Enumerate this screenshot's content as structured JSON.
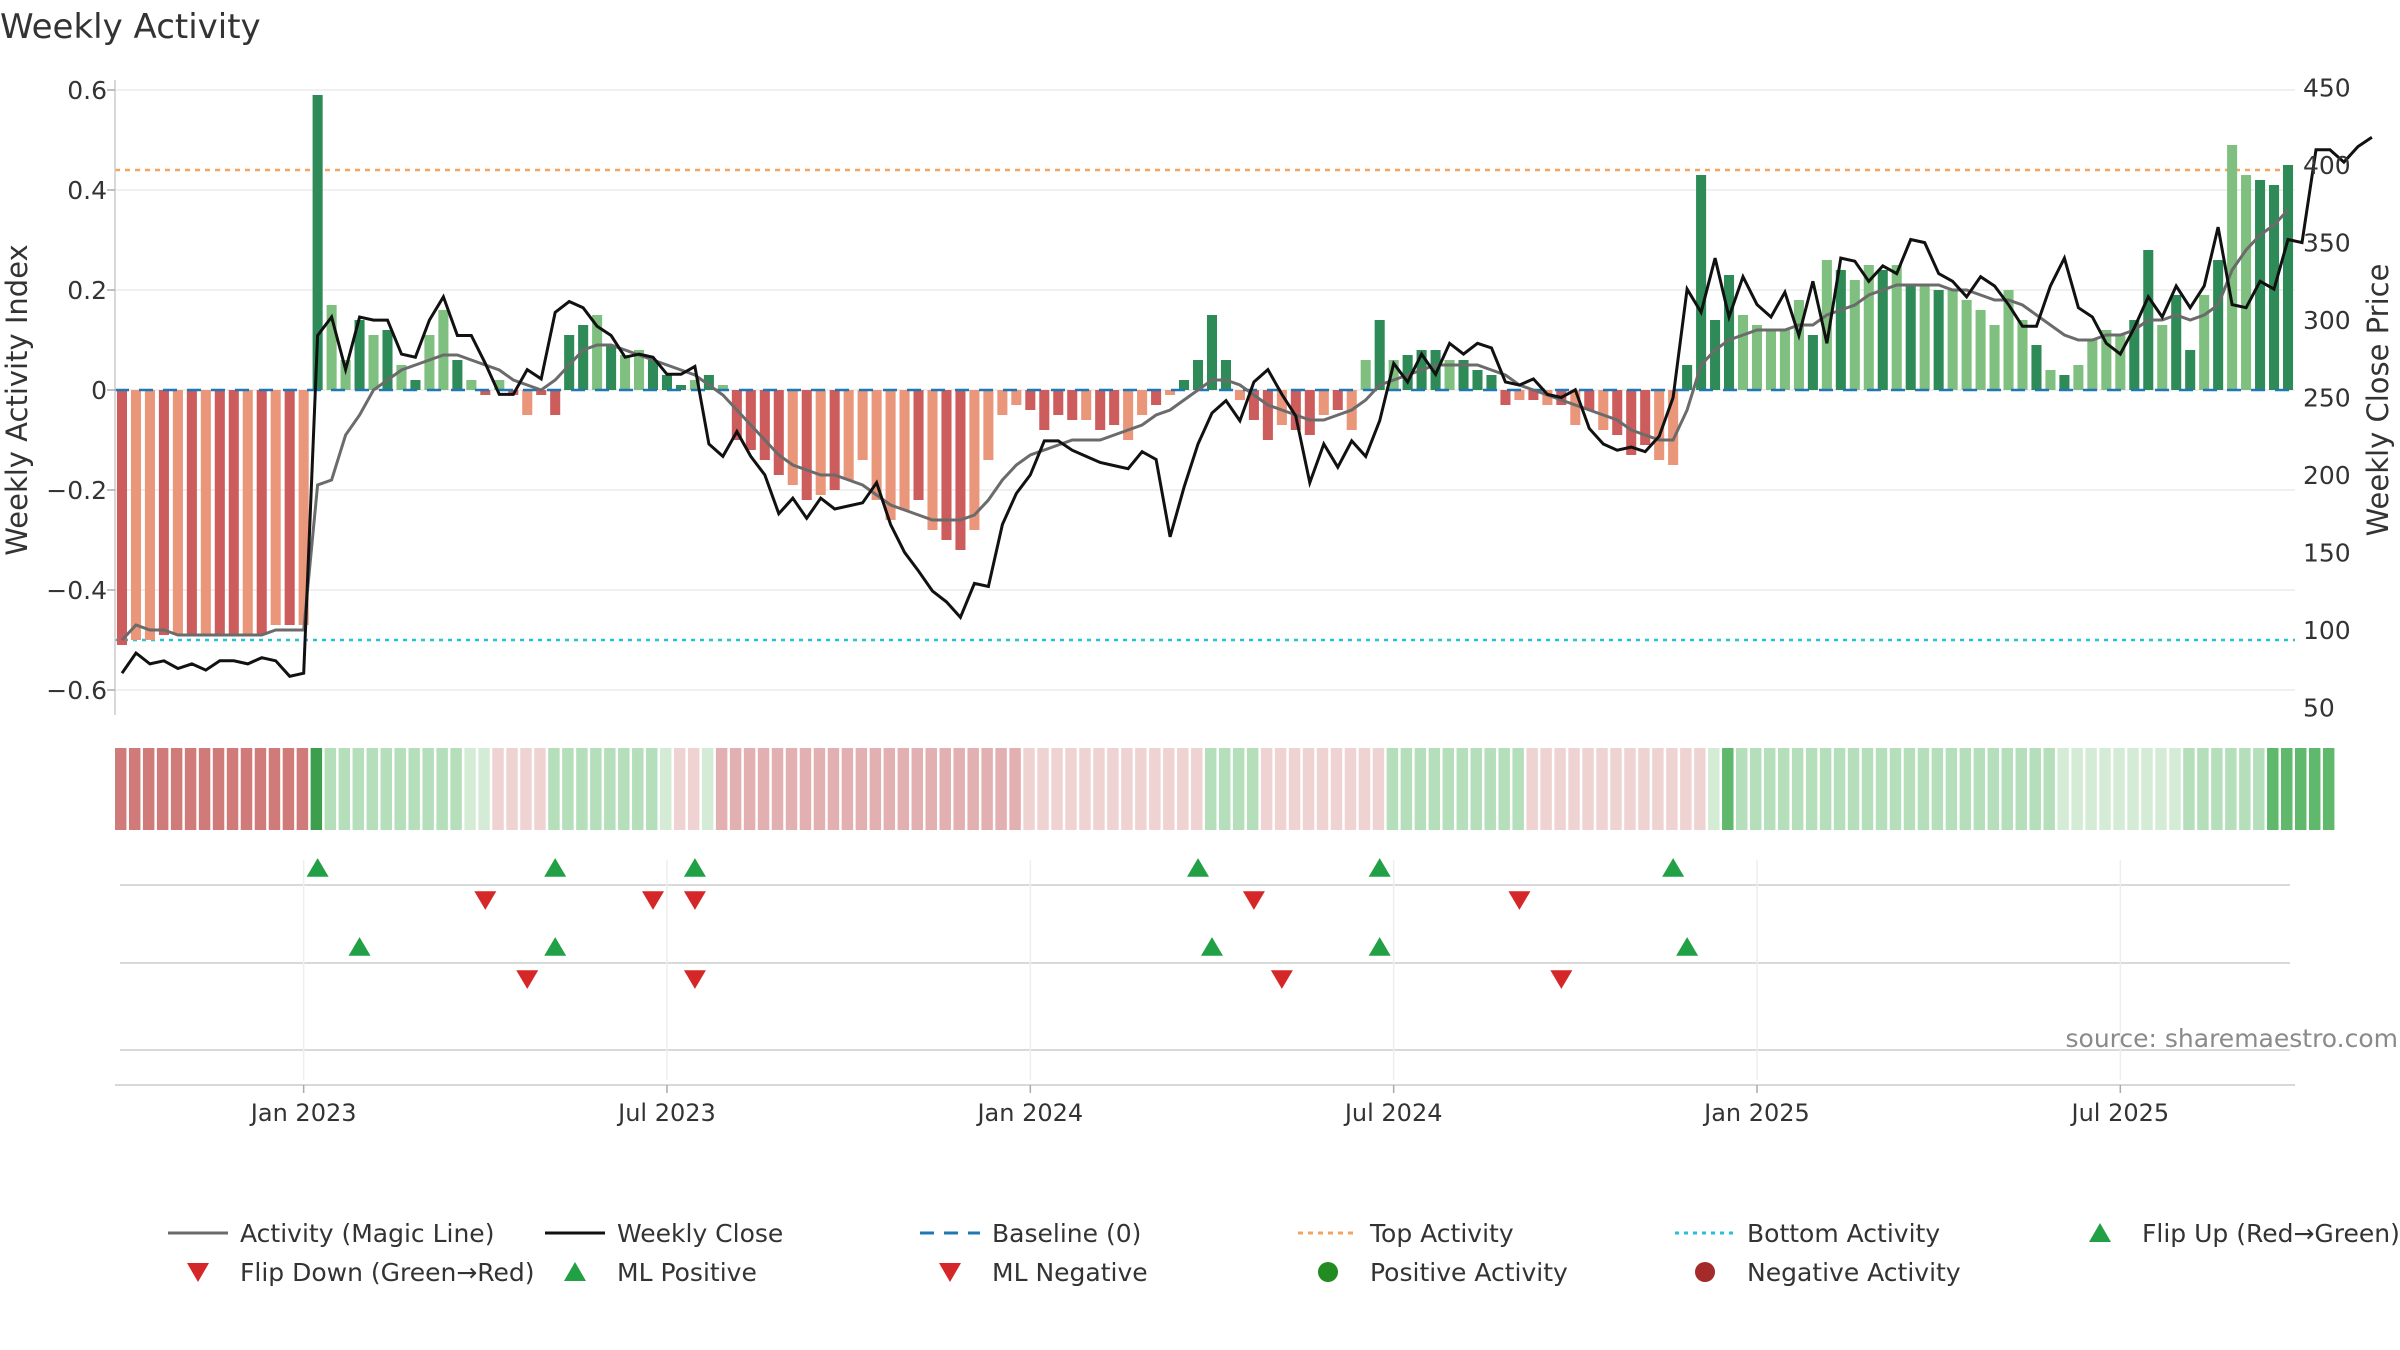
{
  "title": "Weekly Activity",
  "source": "source: sharemaestro.com",
  "colors": {
    "strong_green": "#2e8b57",
    "light_green": "#7fbf7f",
    "strong_red": "#cd5c5c",
    "light_red": "#e9967a",
    "close": "#111111",
    "magic": "#6b6b6b",
    "baseline": "#1f77b4",
    "top": "#f4a460",
    "bottom": "#22c3d6",
    "marker_green": "#22a045",
    "marker_red": "#d62728"
  },
  "chart_data": {
    "type": "bar",
    "title": "Weekly Activity",
    "ylabel_left": "Weekly Activity Index",
    "ylabel_right": "Weekly Close Price",
    "ylim_left": [
      -0.65,
      0.62
    ],
    "ylim_right": [
      45,
      455
    ],
    "left_ticks": [
      {
        "v": 0.6,
        "label": "0.6"
      },
      {
        "v": 0.4,
        "label": "0.4"
      },
      {
        "v": 0.2,
        "label": "0.2"
      },
      {
        "v": 0,
        "label": "0"
      },
      {
        "v": -0.2,
        "label": "−0.2"
      },
      {
        "v": -0.4,
        "label": "−0.4"
      },
      {
        "v": -0.6,
        "label": "−0.6"
      }
    ],
    "right_ticks": [
      {
        "v": 450,
        "label": "450"
      },
      {
        "v": 400,
        "label": "400"
      },
      {
        "v": 350,
        "label": "350"
      },
      {
        "v": 300,
        "label": "300"
      },
      {
        "v": 250,
        "label": "250"
      },
      {
        "v": 200,
        "label": "200"
      },
      {
        "v": 150,
        "label": "150"
      },
      {
        "v": 100,
        "label": "100"
      },
      {
        "v": 50,
        "label": "50"
      }
    ],
    "x_ticks": [
      {
        "week": 13.5,
        "label": "Jan 2023"
      },
      {
        "week": 39.5,
        "label": "Jul 2023"
      },
      {
        "week": 65.5,
        "label": "Jan 2024"
      },
      {
        "week": 91.5,
        "label": "Jul 2024"
      },
      {
        "week": 117.5,
        "label": "Jan 2025"
      },
      {
        "week": 143.5,
        "label": "Jul 2025"
      }
    ],
    "top_activity": 0.44,
    "bottom_activity": -0.5,
    "activity": [
      -0.51,
      -0.5,
      -0.5,
      -0.49,
      -0.49,
      -0.49,
      -0.49,
      -0.49,
      -0.49,
      -0.49,
      -0.49,
      -0.47,
      -0.47,
      -0.47,
      0.59,
      0.17,
      0.06,
      0.14,
      0.11,
      0.12,
      0.05,
      0.02,
      0.11,
      0.16,
      0.06,
      0.02,
      -0.01,
      0.02,
      -0.01,
      -0.05,
      -0.01,
      -0.05,
      0.11,
      0.13,
      0.15,
      0.09,
      0.07,
      0.08,
      0.06,
      0.03,
      0.01,
      0.02,
      0.03,
      0.01,
      -0.1,
      -0.12,
      -0.14,
      -0.17,
      -0.19,
      -0.22,
      -0.21,
      -0.2,
      -0.18,
      -0.14,
      -0.22,
      -0.26,
      -0.24,
      -0.22,
      -0.28,
      -0.3,
      -0.32,
      -0.28,
      -0.14,
      -0.05,
      -0.03,
      -0.04,
      -0.08,
      -0.05,
      -0.06,
      -0.06,
      -0.08,
      -0.07,
      -0.1,
      -0.05,
      -0.03,
      -0.01,
      0.02,
      0.06,
      0.15,
      0.06,
      -0.02,
      -0.06,
      -0.1,
      -0.07,
      -0.08,
      -0.09,
      -0.05,
      -0.04,
      -0.08,
      0.06,
      0.14,
      0.06,
      0.07,
      0.08,
      0.08,
      0.06,
      0.06,
      0.04,
      0.03,
      -0.03,
      -0.02,
      -0.02,
      -0.03,
      -0.03,
      -0.07,
      -0.04,
      -0.08,
      -0.09,
      -0.13,
      -0.11,
      -0.14,
      -0.15,
      0.05,
      0.43,
      0.14,
      0.23,
      0.15,
      0.13,
      0.12,
      0.12,
      0.18,
      0.11,
      0.26,
      0.24,
      0.22,
      0.25,
      0.24,
      0.25,
      0.21,
      0.21,
      0.2,
      0.2,
      0.18,
      0.16,
      0.13,
      0.2,
      0.14,
      0.09,
      0.04,
      0.03,
      0.05,
      0.1,
      0.12,
      0.11,
      0.14,
      0.28,
      0.13,
      0.19,
      0.08,
      0.19,
      0.26,
      0.49,
      0.43,
      0.42,
      0.41,
      0.45
    ],
    "strength": [
      "s",
      "l",
      "l",
      "s",
      "l",
      "s",
      "l",
      "s",
      "s",
      "l",
      "s",
      "l",
      "s",
      "l",
      "s",
      "l",
      "l",
      "s",
      "l",
      "s",
      "l",
      "s",
      "l",
      "l",
      "s",
      "l",
      "s",
      "l",
      "s",
      "l",
      "s",
      "s",
      "s",
      "s",
      "l",
      "s",
      "l",
      "l",
      "s",
      "s",
      "s",
      "l",
      "s",
      "l",
      "s",
      "s",
      "s",
      "s",
      "l",
      "s",
      "l",
      "s",
      "l",
      "l",
      "l",
      "l",
      "l",
      "s",
      "l",
      "s",
      "s",
      "l",
      "l",
      "l",
      "l",
      "s",
      "s",
      "s",
      "s",
      "l",
      "s",
      "s",
      "l",
      "l",
      "s",
      "l",
      "s",
      "s",
      "s",
      "s",
      "l",
      "s",
      "s",
      "l",
      "s",
      "s",
      "l",
      "s",
      "l",
      "l",
      "s",
      "l",
      "s",
      "s",
      "s",
      "l",
      "s",
      "s",
      "s",
      "s",
      "l",
      "s",
      "l",
      "s",
      "l",
      "s",
      "l",
      "s",
      "s",
      "s",
      "l",
      "l",
      "s",
      "s",
      "s",
      "s",
      "l",
      "l",
      "l",
      "l",
      "l",
      "s",
      "l",
      "s",
      "l",
      "l",
      "s",
      "l",
      "s",
      "l",
      "s",
      "l",
      "l",
      "l",
      "l",
      "l",
      "l",
      "s",
      "l",
      "s",
      "l",
      "l",
      "l",
      "l",
      "s",
      "s",
      "l",
      "s",
      "s",
      "l",
      "s",
      "l",
      "l",
      "s",
      "s",
      "s",
      "l",
      "l",
      "l",
      "s"
    ],
    "close": [
      72,
      85,
      78,
      80,
      75,
      78,
      74,
      80,
      80,
      78,
      82,
      80,
      70,
      72,
      290,
      302,
      268,
      302,
      300,
      300,
      278,
      276,
      300,
      315,
      290,
      290,
      272,
      252,
      252,
      268,
      262,
      305,
      312,
      308,
      296,
      290,
      276,
      278,
      276,
      265,
      265,
      270,
      220,
      212,
      228,
      212,
      200,
      175,
      185,
      172,
      185,
      178,
      180,
      182,
      195,
      168,
      150,
      138,
      125,
      118,
      108,
      130,
      128,
      168,
      188,
      200,
      222,
      222,
      216,
      212,
      208,
      206,
      204,
      215,
      210,
      160,
      192,
      220,
      240,
      248,
      235,
      260,
      268,
      252,
      238,
      195,
      220,
      205,
      222,
      212,
      235,
      272,
      260,
      278,
      265,
      285,
      278,
      285,
      282,
      260,
      258,
      262,
      252,
      250,
      255,
      230,
      220,
      216,
      218,
      215,
      225,
      250,
      320,
      305,
      340,
      302,
      328,
      310,
      302,
      318,
      290,
      325,
      285,
      340,
      338,
      325,
      335,
      330,
      352,
      350,
      330,
      325,
      315,
      328,
      322,
      310,
      296,
      296,
      322,
      340,
      308,
      302,
      285,
      278,
      295,
      315,
      302,
      322,
      308,
      322,
      360,
      310,
      308,
      325,
      320,
      352,
      350,
      410,
      410,
      402,
      412,
      418
    ],
    "magic": [
      -0.5,
      -0.47,
      -0.48,
      -0.48,
      -0.49,
      -0.49,
      -0.49,
      -0.49,
      -0.49,
      -0.49,
      -0.49,
      -0.48,
      -0.48,
      -0.48,
      -0.19,
      -0.18,
      -0.09,
      -0.05,
      0.0,
      0.02,
      0.04,
      0.05,
      0.06,
      0.07,
      0.07,
      0.06,
      0.05,
      0.04,
      0.02,
      0.01,
      0.0,
      0.02,
      0.05,
      0.08,
      0.09,
      0.09,
      0.08,
      0.07,
      0.06,
      0.05,
      0.04,
      0.03,
      0.01,
      -0.01,
      -0.04,
      -0.07,
      -0.1,
      -0.13,
      -0.15,
      -0.16,
      -0.17,
      -0.17,
      -0.18,
      -0.19,
      -0.21,
      -0.23,
      -0.24,
      -0.25,
      -0.26,
      -0.26,
      -0.26,
      -0.25,
      -0.22,
      -0.18,
      -0.15,
      -0.13,
      -0.12,
      -0.11,
      -0.1,
      -0.1,
      -0.1,
      -0.09,
      -0.08,
      -0.07,
      -0.05,
      -0.04,
      -0.02,
      0.0,
      0.02,
      0.02,
      0.01,
      -0.01,
      -0.03,
      -0.04,
      -0.05,
      -0.06,
      -0.06,
      -0.05,
      -0.04,
      -0.02,
      0.01,
      0.02,
      0.03,
      0.04,
      0.05,
      0.05,
      0.05,
      0.05,
      0.04,
      0.03,
      0.01,
      0.0,
      -0.01,
      -0.02,
      -0.03,
      -0.04,
      -0.05,
      -0.06,
      -0.08,
      -0.09,
      -0.1,
      -0.1,
      -0.04,
      0.05,
      0.08,
      0.1,
      0.11,
      0.12,
      0.12,
      0.12,
      0.13,
      0.13,
      0.15,
      0.16,
      0.17,
      0.19,
      0.2,
      0.21,
      0.21,
      0.21,
      0.21,
      0.2,
      0.2,
      0.19,
      0.18,
      0.18,
      0.17,
      0.15,
      0.13,
      0.11,
      0.1,
      0.1,
      0.11,
      0.11,
      0.12,
      0.14,
      0.14,
      0.15,
      0.14,
      0.15,
      0.17,
      0.24,
      0.28,
      0.31,
      0.33,
      0.36
    ],
    "heat": [
      [
        "r",
        2
      ],
      [
        "r",
        2
      ],
      [
        "r",
        2
      ],
      [
        "r",
        2
      ],
      [
        "r",
        2
      ],
      [
        "r",
        2
      ],
      [
        "r",
        2
      ],
      [
        "r",
        2
      ],
      [
        "r",
        2
      ],
      [
        "r",
        2
      ],
      [
        "r",
        2
      ],
      [
        "r",
        2
      ],
      [
        "r",
        2
      ],
      [
        "r",
        2
      ],
      [
        "g",
        3
      ],
      [
        "g",
        1
      ],
      [
        "g",
        1
      ],
      [
        "g",
        1
      ],
      [
        "g",
        1
      ],
      [
        "g",
        1
      ],
      [
        "g",
        1
      ],
      [
        "g",
        1
      ],
      [
        "g",
        1
      ],
      [
        "g",
        1
      ],
      [
        "g",
        1
      ],
      [
        "g",
        0
      ],
      [
        "g",
        0
      ],
      [
        "r",
        0
      ],
      [
        "r",
        0
      ],
      [
        "r",
        0
      ],
      [
        "r",
        0
      ],
      [
        "g",
        1
      ],
      [
        "g",
        1
      ],
      [
        "g",
        1
      ],
      [
        "g",
        1
      ],
      [
        "g",
        1
      ],
      [
        "g",
        1
      ],
      [
        "g",
        1
      ],
      [
        "g",
        1
      ],
      [
        "g",
        0
      ],
      [
        "r",
        0
      ],
      [
        "r",
        0
      ],
      [
        "g",
        0
      ],
      [
        "r",
        1
      ],
      [
        "r",
        1
      ],
      [
        "r",
        1
      ],
      [
        "r",
        1
      ],
      [
        "r",
        1
      ],
      [
        "r",
        1
      ],
      [
        "r",
        1
      ],
      [
        "r",
        1
      ],
      [
        "r",
        1
      ],
      [
        "r",
        1
      ],
      [
        "r",
        1
      ],
      [
        "r",
        1
      ],
      [
        "r",
        1
      ],
      [
        "r",
        1
      ],
      [
        "r",
        1
      ],
      [
        "r",
        1
      ],
      [
        "r",
        1
      ],
      [
        "r",
        1
      ],
      [
        "r",
        1
      ],
      [
        "r",
        1
      ],
      [
        "r",
        1
      ],
      [
        "r",
        1
      ],
      [
        "r",
        0
      ],
      [
        "r",
        0
      ],
      [
        "r",
        0
      ],
      [
        "r",
        0
      ],
      [
        "r",
        0
      ],
      [
        "r",
        0
      ],
      [
        "r",
        0
      ],
      [
        "r",
        0
      ],
      [
        "r",
        0
      ],
      [
        "r",
        0
      ],
      [
        "r",
        0
      ],
      [
        "r",
        0
      ],
      [
        "r",
        0
      ],
      [
        "g",
        1
      ],
      [
        "g",
        1
      ],
      [
        "g",
        1
      ],
      [
        "g",
        1
      ],
      [
        "r",
        0
      ],
      [
        "r",
        0
      ],
      [
        "r",
        0
      ],
      [
        "r",
        0
      ],
      [
        "r",
        0
      ],
      [
        "r",
        0
      ],
      [
        "r",
        0
      ],
      [
        "r",
        0
      ],
      [
        "r",
        0
      ],
      [
        "g",
        1
      ],
      [
        "g",
        1
      ],
      [
        "g",
        1
      ],
      [
        "g",
        1
      ],
      [
        "g",
        1
      ],
      [
        "g",
        1
      ],
      [
        "g",
        1
      ],
      [
        "g",
        1
      ],
      [
        "g",
        1
      ],
      [
        "g",
        1
      ],
      [
        "r",
        0
      ],
      [
        "r",
        0
      ],
      [
        "r",
        0
      ],
      [
        "r",
        0
      ],
      [
        "r",
        0
      ],
      [
        "r",
        0
      ],
      [
        "r",
        0
      ],
      [
        "r",
        0
      ],
      [
        "r",
        0
      ],
      [
        "r",
        0
      ],
      [
        "r",
        0
      ],
      [
        "r",
        0
      ],
      [
        "r",
        0
      ],
      [
        "g",
        0
      ],
      [
        "g",
        2
      ],
      [
        "g",
        1
      ],
      [
        "g",
        1
      ],
      [
        "g",
        1
      ],
      [
        "g",
        1
      ],
      [
        "g",
        1
      ],
      [
        "g",
        1
      ],
      [
        "g",
        1
      ],
      [
        "g",
        1
      ],
      [
        "g",
        1
      ],
      [
        "g",
        1
      ],
      [
        "g",
        1
      ],
      [
        "g",
        1
      ],
      [
        "g",
        1
      ],
      [
        "g",
        1
      ],
      [
        "g",
        1
      ],
      [
        "g",
        1
      ],
      [
        "g",
        1
      ],
      [
        "g",
        1
      ],
      [
        "g",
        1
      ],
      [
        "g",
        1
      ],
      [
        "g",
        1
      ],
      [
        "g",
        1
      ],
      [
        "g",
        1
      ],
      [
        "g",
        0
      ],
      [
        "g",
        0
      ],
      [
        "g",
        0
      ],
      [
        "g",
        0
      ],
      [
        "g",
        0
      ],
      [
        "g",
        0
      ],
      [
        "g",
        0
      ],
      [
        "g",
        0
      ],
      [
        "g",
        0
      ],
      [
        "g",
        1
      ],
      [
        "g",
        1
      ],
      [
        "g",
        1
      ],
      [
        "g",
        1
      ],
      [
        "g",
        1
      ],
      [
        "g",
        1
      ],
      [
        "g",
        2
      ],
      [
        "g",
        2
      ],
      [
        "g",
        2
      ],
      [
        "g",
        2
      ],
      [
        "g",
        2
      ]
    ],
    "flip_up_weeks": [
      14,
      31,
      41,
      77,
      90,
      111
    ],
    "flip_down_weeks": [
      26,
      38,
      41,
      81,
      100
    ],
    "ml_positive_weeks": [
      17,
      31,
      78,
      90,
      112
    ],
    "ml_negative_weeks": [
      29,
      41,
      83,
      103
    ]
  },
  "legend": [
    {
      "label": "Activity (Magic Line)",
      "kind": "line-magic"
    },
    {
      "label": "Weekly Close",
      "kind": "line-close"
    },
    {
      "label": "Baseline (0)",
      "kind": "line-baseline"
    },
    {
      "label": "Top Activity",
      "kind": "line-top"
    },
    {
      "label": "Bottom Activity",
      "kind": "line-bottom"
    },
    {
      "label": "Flip Up (Red→Green)",
      "kind": "tri-up"
    },
    {
      "label": "Flip Down (Green→Red)",
      "kind": "tri-down"
    },
    {
      "label": "ML Positive",
      "kind": "tri-up"
    },
    {
      "label": "ML Negative",
      "kind": "tri-down"
    },
    {
      "label": "Positive Activity",
      "kind": "dot-green"
    },
    {
      "label": "Negative Activity",
      "kind": "dot-red"
    }
  ]
}
